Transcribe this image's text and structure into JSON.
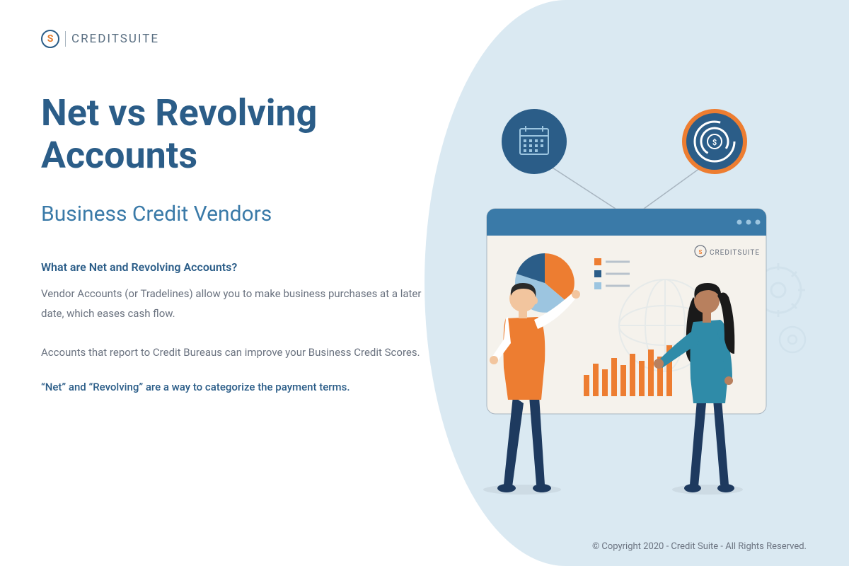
{
  "logo": {
    "icon_letter": "S",
    "text": "CREDITSUITE"
  },
  "content": {
    "title": "Net vs Revolving Accounts",
    "subtitle": "Business Credit Vendors",
    "question": "What are Net and Revolving Accounts?",
    "para1": "Vendor Accounts (or Tradelines) allow you to make business purchases at a later date, which eases cash flow.",
    "para2": "Accounts that report to Credit Bureaus can improve your Business Credit Scores.",
    "highlight": "“Net” and “Revolving” are a way to categorize the payment terms."
  },
  "footer": {
    "copyright": "© Copyright 2020 - Credit Suite - All Rights Reserved."
  },
  "colors": {
    "primary_blue": "#2b5d88",
    "light_blue": "#3a7aa8",
    "orange": "#ed7d31",
    "bg_blue": "#dae9f2",
    "dark_navy": "#1e3a5f",
    "teal": "#2f8ba8",
    "gray_text": "#6b7380",
    "skin1": "#f2c59e",
    "skin2": "#b8805e"
  },
  "illustration": {
    "screen_logo": "CREDITSUITE",
    "pie_segments": [
      {
        "color": "#ed7d31",
        "start": 0,
        "end": 130
      },
      {
        "color": "#9cc5e0",
        "start": 130,
        "end": 250
      },
      {
        "color": "#2b5d88",
        "start": 250,
        "end": 360
      }
    ],
    "legend_colors": [
      "#ed7d31",
      "#2b5d88",
      "#9cc5e0"
    ],
    "bar_heights": [
      30,
      46,
      38,
      54,
      44,
      60,
      50,
      66,
      56,
      72
    ],
    "bar_color": "#ed7d31"
  }
}
